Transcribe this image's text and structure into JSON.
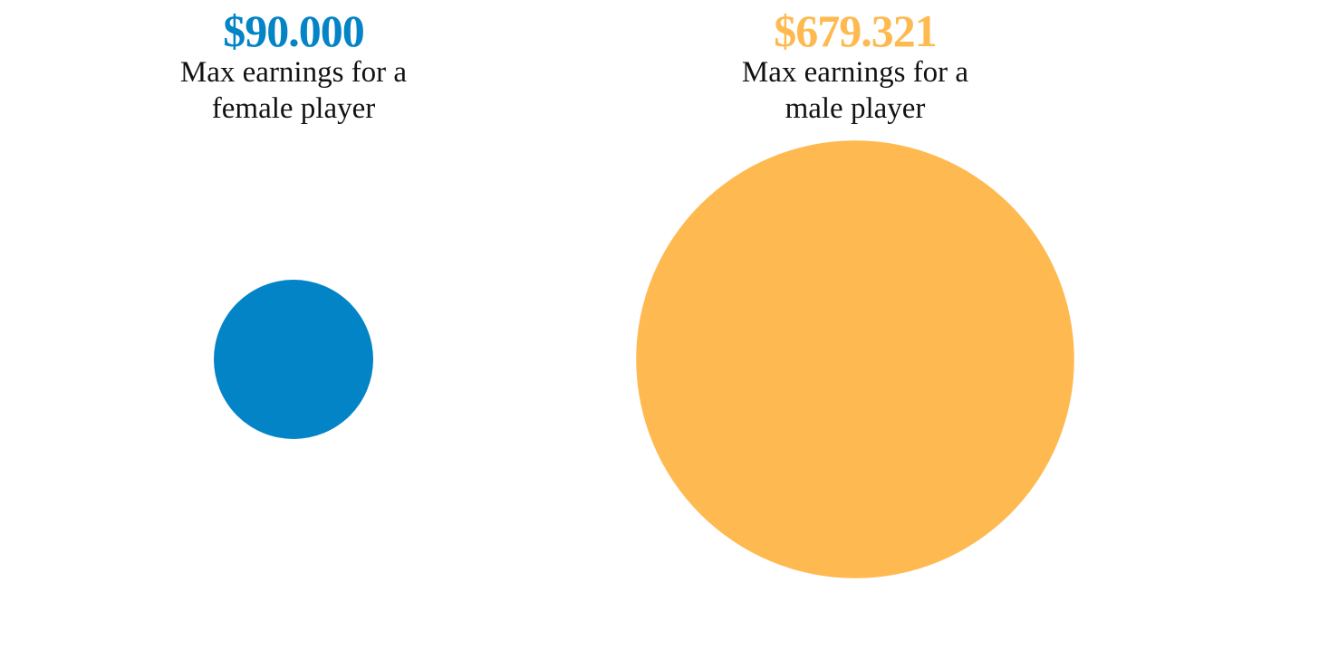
{
  "chart_data": {
    "type": "bubble",
    "categories": [
      "Max earnings for a female player",
      "Max earnings for a male player"
    ],
    "values": [
      90000,
      679321
    ],
    "value_labels": [
      "$90.000",
      "$679.321"
    ],
    "colors": [
      "#0384c6",
      "#feba51"
    ]
  }
}
